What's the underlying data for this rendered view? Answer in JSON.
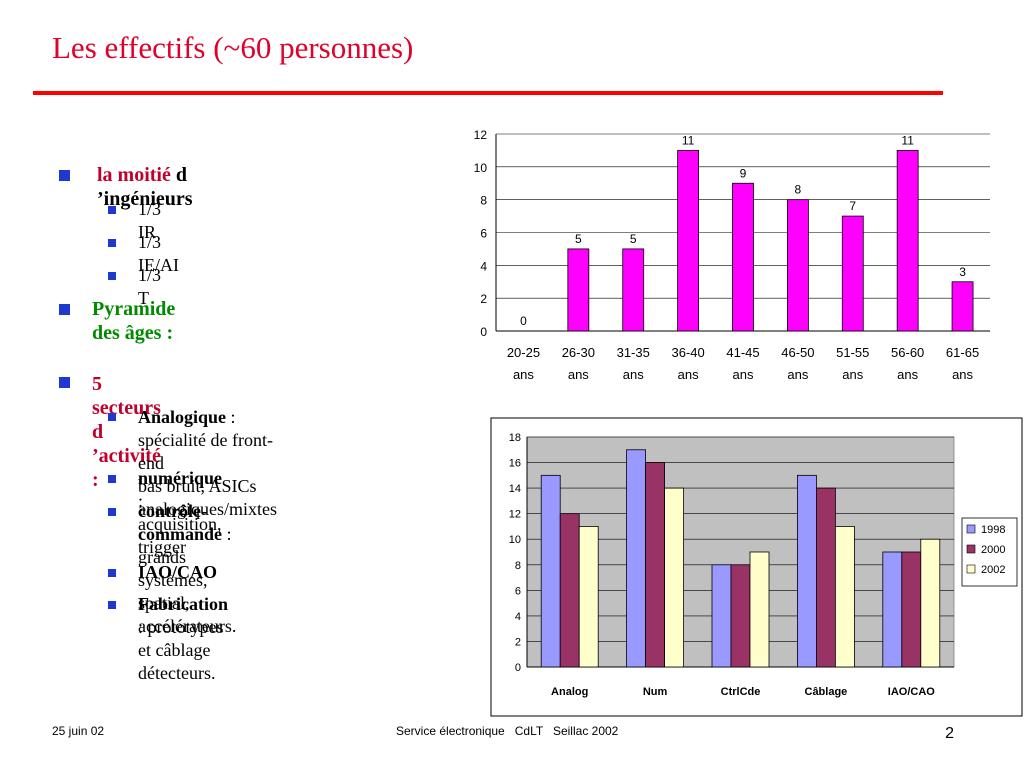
{
  "slide": {
    "title": "Les effectifs (~60 personnes)",
    "footer_date": "25 juin 02",
    "footer_center": "Service électronique   CdLT   Seillac 2002",
    "page_number": "2"
  },
  "bullets": {
    "b1_red": "la moitié",
    "b1_black": " d ’ingénieurs",
    "b1_sub": [
      "1/3 IR",
      "1/3 IE/AI",
      "1/3 T"
    ],
    "b2": "Pyramide des âges :",
    "b3": "5 secteurs d ’activité :",
    "b3_sub": [
      {
        "bold": "Analogique",
        "rest": " : spécialité de front-end",
        "line2": "bas bruit, ASICs analogiques/mixtes"
      },
      {
        "bold": "numérique",
        "rest": " : acquisition, trigger"
      },
      {
        "bold": "contrôle-commande",
        "rest": " : grands",
        "line2": "systèmes, spatial, accélérateurs."
      },
      {
        "bold": "IAO/CAO",
        "rest": ""
      },
      {
        "bold": "Fabrication",
        "rest": " : prototypes et câblage",
        "line2": "détecteurs."
      }
    ]
  },
  "colors": {
    "title": "#e0002a",
    "age_bar": "#ff00ff",
    "s1998": "#9999ff",
    "s2000": "#993366",
    "s2002": "#ffffcc",
    "plot_bg": "#c0c0c0"
  },
  "chart_data": [
    {
      "type": "bar",
      "categories": [
        "20-25 ans",
        "26-30 ans",
        "31-35 ans",
        "36-40 ans",
        "41-45 ans",
        "46-50 ans",
        "51-55 ans",
        "56-60 ans",
        "61-65 ans"
      ],
      "values": [
        0,
        5,
        5,
        11,
        9,
        8,
        7,
        11,
        3
      ],
      "ylim": [
        0,
        12
      ],
      "yticks": [
        0,
        2,
        4,
        6,
        8,
        10,
        12
      ],
      "grid": true
    },
    {
      "type": "bar",
      "categories": [
        "Analog",
        "Num",
        "CtrlCde",
        "Câblage",
        "IAO/CAO"
      ],
      "series": [
        {
          "name": "1998",
          "values": [
            15,
            17,
            8,
            15,
            9
          ]
        },
        {
          "name": "2000",
          "values": [
            12,
            16,
            8,
            14,
            9
          ]
        },
        {
          "name": "2002",
          "values": [
            11,
            14,
            9,
            11,
            10
          ]
        }
      ],
      "ylim": [
        0,
        18
      ],
      "yticks": [
        0,
        2,
        4,
        6,
        8,
        10,
        12,
        14,
        16,
        18
      ],
      "legend": "right",
      "grid": true
    }
  ]
}
